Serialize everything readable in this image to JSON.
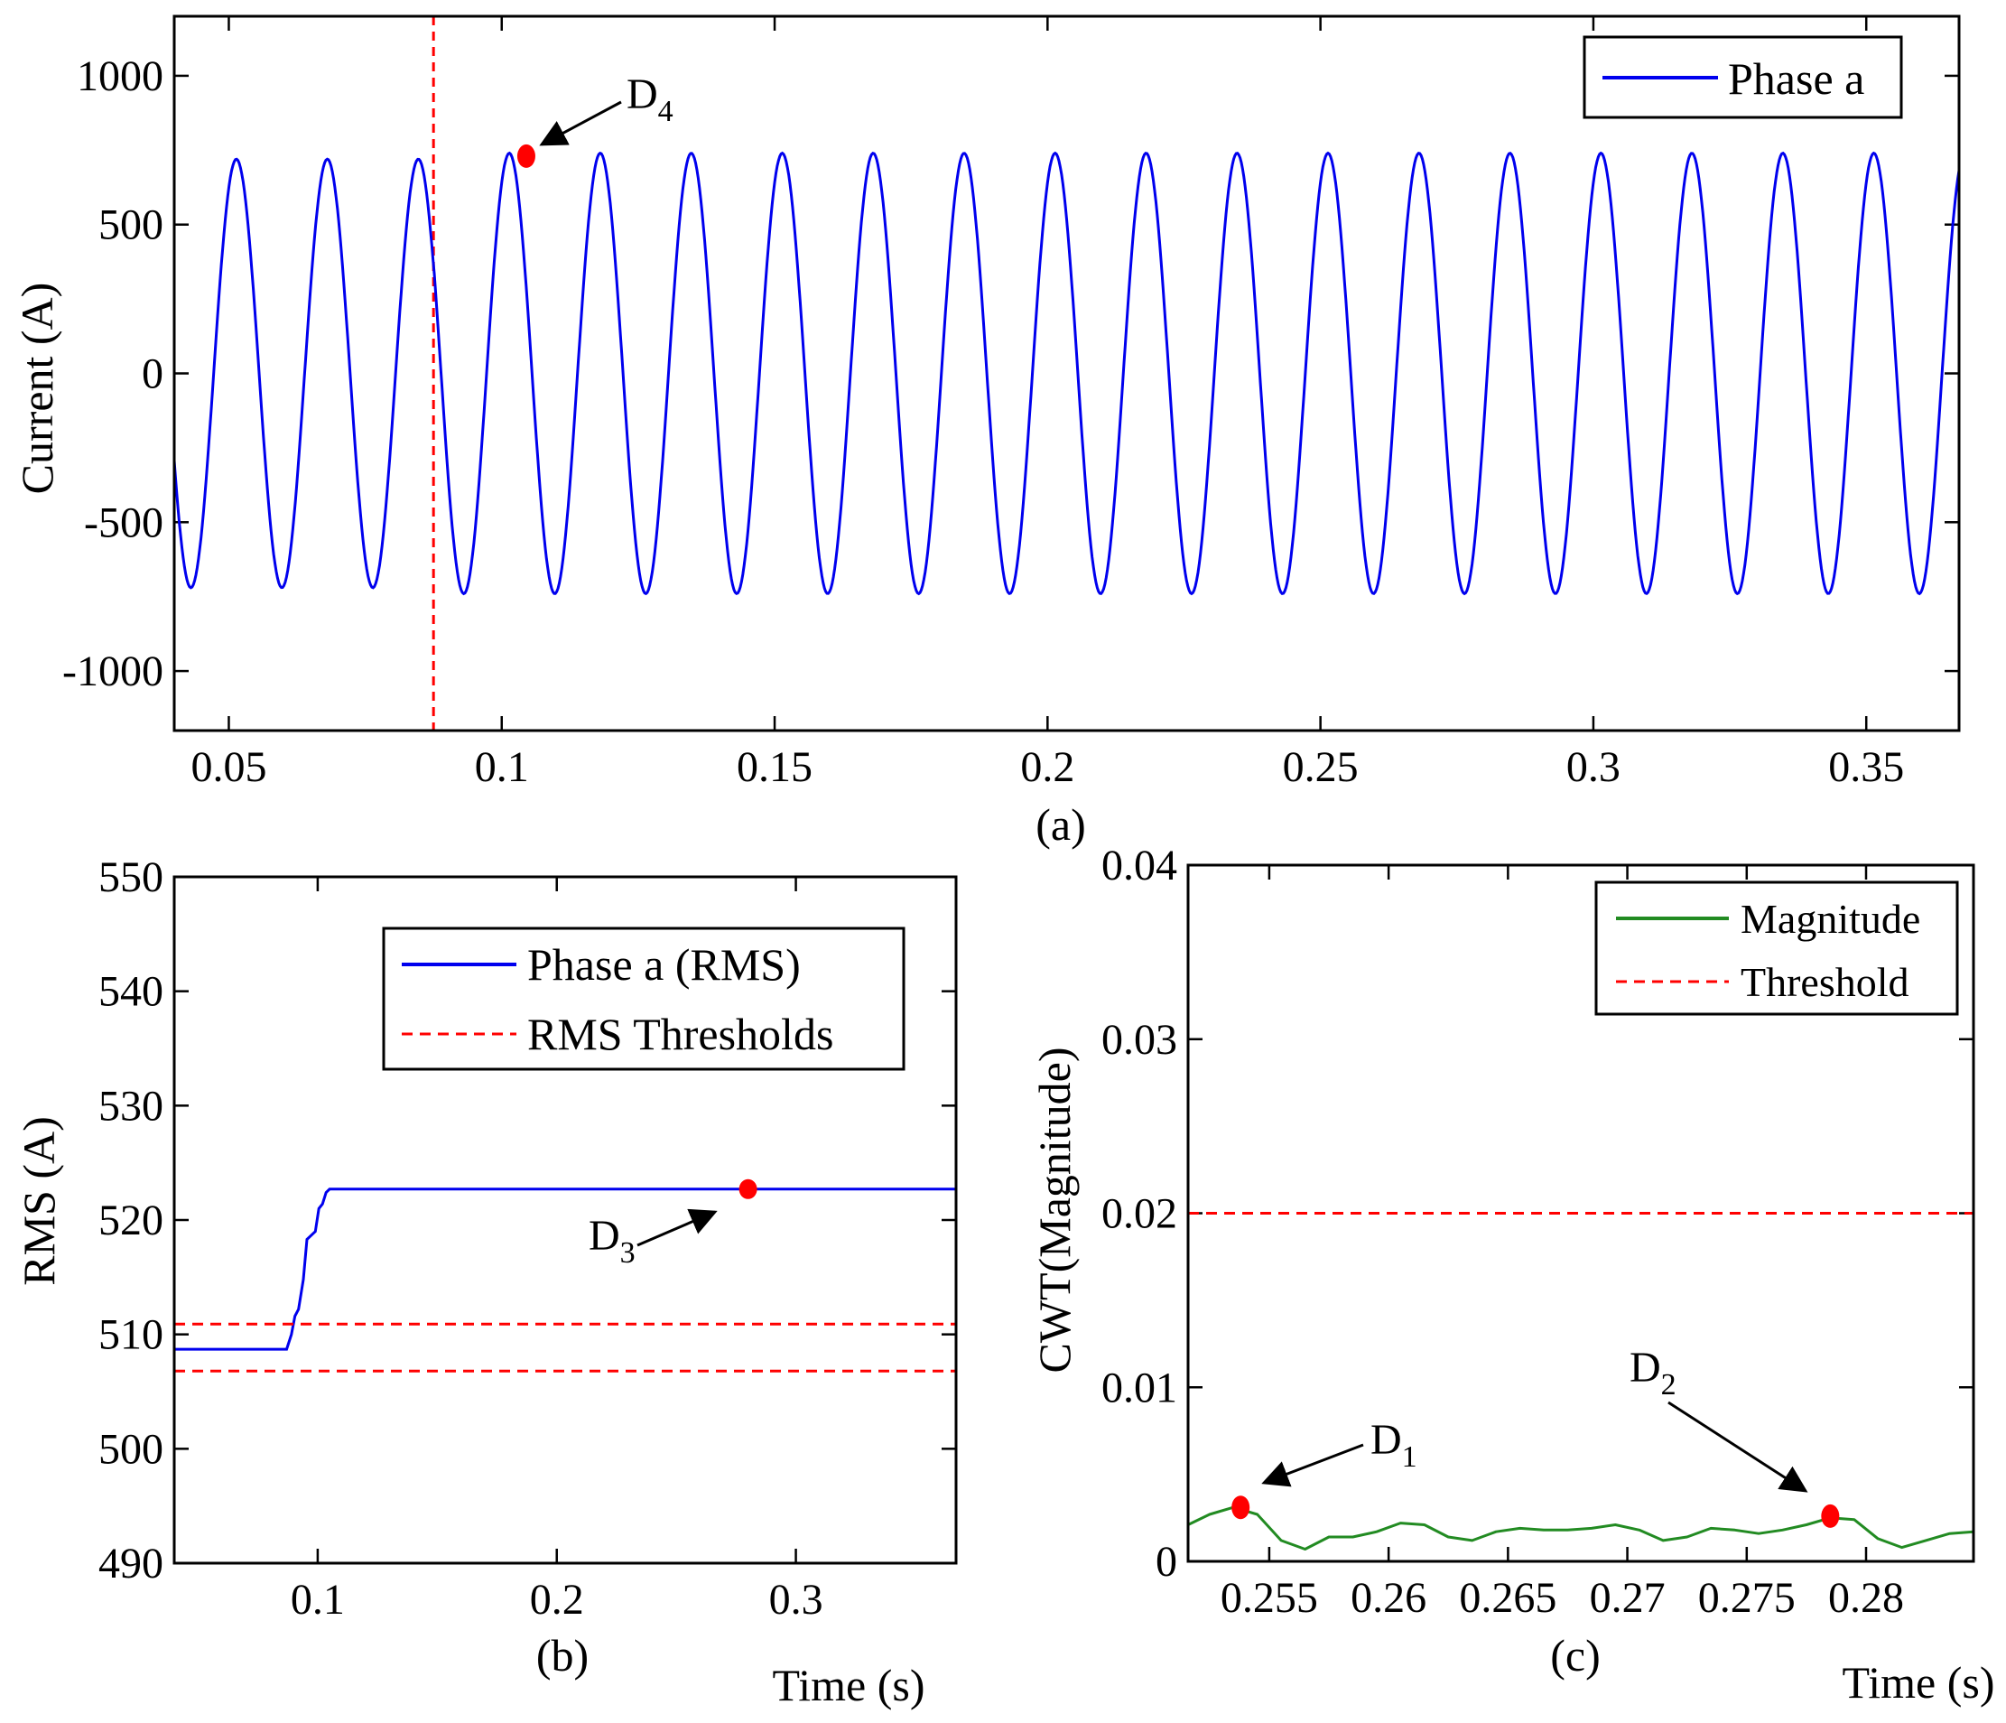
{
  "colors": {
    "phase": "#0000ee",
    "threshold": "#ff0000",
    "magnitude": "#228b22",
    "marker": "#ff0000",
    "axis": "#000000"
  },
  "chart_data": [
    {
      "id": "a",
      "type": "line",
      "panel_label": "(a)",
      "title": "",
      "xlabel": "",
      "ylabel": "Current (A)",
      "xlim": [
        0.04,
        0.367
      ],
      "ylim": [
        -1200,
        1200
      ],
      "xticks": [
        0.05,
        0.1,
        0.15,
        0.2,
        0.25,
        0.3,
        0.35
      ],
      "xtick_labels": [
        "0.05",
        "0.1",
        "0.15",
        "0.2",
        "0.25",
        "0.3",
        "0.35"
      ],
      "yticks": [
        -1000,
        -500,
        0,
        500,
        1000
      ],
      "ytick_labels": [
        "-1000",
        "-500",
        "0",
        "500",
        "1000"
      ],
      "series": [
        {
          "name": "Phase a",
          "kind": "sinusoid",
          "frequency_hz": 60,
          "amplitude_before": 720,
          "amplitude_after": 740,
          "change_time": 0.0875,
          "phase_deg": 60,
          "t_start": 0.04,
          "t_end": 0.367
        }
      ],
      "vlines": [
        {
          "x": 0.0875
        }
      ],
      "markers": [
        {
          "x": 0.1045,
          "y": 730,
          "label": "D",
          "sub": "4"
        }
      ],
      "legend": {
        "entries": [
          "Phase a"
        ],
        "position": "top-right"
      }
    },
    {
      "id": "b",
      "type": "line",
      "panel_label": "(b)",
      "title": "",
      "xlabel": "Time (s)",
      "ylabel": "RMS (A)",
      "xlim": [
        0.04,
        0.367
      ],
      "ylim": [
        490,
        550
      ],
      "xticks": [
        0.1,
        0.2,
        0.3
      ],
      "xtick_labels": [
        "0.1",
        "0.2",
        "0.3"
      ],
      "yticks": [
        490,
        500,
        510,
        520,
        530,
        540,
        550
      ],
      "ytick_labels": [
        "490",
        "500",
        "510",
        "520",
        "530",
        "540",
        "550"
      ],
      "series": [
        {
          "name": "Phase a (RMS)",
          "x": [
            0.04,
            0.087,
            0.089,
            0.0905,
            0.092,
            0.094,
            0.0955,
            0.097,
            0.099,
            0.1005,
            0.102,
            0.1035,
            0.105,
            0.367
          ],
          "y": [
            508.7,
            508.7,
            510.0,
            511.6,
            512.2,
            514.8,
            518.3,
            518.6,
            519.0,
            521.0,
            521.4,
            522.4,
            522.7,
            522.7
          ]
        },
        {
          "name": "RMS Thresholds",
          "x": [
            0.04,
            0.367
          ],
          "y": [
            510.9,
            510.9
          ]
        },
        {
          "name": "RMS Thresholds",
          "x": [
            0.04,
            0.367
          ],
          "y": [
            506.8,
            506.8
          ]
        }
      ],
      "markers": [
        {
          "x": 0.28,
          "y": 522.7,
          "label": "D",
          "sub": "3"
        }
      ],
      "legend": {
        "entries": [
          "Phase a (RMS)",
          "RMS Thresholds"
        ],
        "position": "top-right"
      }
    },
    {
      "id": "c",
      "type": "line",
      "panel_label": "(c)",
      "title": "",
      "xlabel": "Time (s)",
      "ylabel": "CWT(Magnitude)",
      "xlim": [
        0.2516,
        0.2845
      ],
      "ylim": [
        0,
        0.04
      ],
      "xticks": [
        0.255,
        0.26,
        0.265,
        0.27,
        0.275,
        0.28
      ],
      "xtick_labels": [
        "0.255",
        "0.26",
        "0.265",
        "0.27",
        "0.275",
        "0.28"
      ],
      "yticks": [
        0,
        0.01,
        0.02,
        0.03,
        0.04
      ],
      "ytick_labels": [
        "0",
        "0.01",
        "0.02",
        "0.03",
        "0.04"
      ],
      "series": [
        {
          "name": "Magnitude",
          "x": [
            0.2516,
            0.2525,
            0.2535,
            0.2545,
            0.2555,
            0.2565,
            0.2575,
            0.2585,
            0.2595,
            0.2605,
            0.2615,
            0.2625,
            0.2635,
            0.2645,
            0.2655,
            0.2665,
            0.2675,
            0.2685,
            0.2695,
            0.2705,
            0.2715,
            0.2725,
            0.2735,
            0.2745,
            0.2755,
            0.2765,
            0.2775,
            0.2785,
            0.2795,
            0.2805,
            0.2815,
            0.2825,
            0.2835,
            0.2845
          ],
          "y": [
            0.0021,
            0.0027,
            0.0031,
            0.0027,
            0.0012,
            0.0007,
            0.0014,
            0.0014,
            0.0017,
            0.0022,
            0.0021,
            0.0014,
            0.0012,
            0.0017,
            0.0019,
            0.0018,
            0.0018,
            0.0019,
            0.0021,
            0.0018,
            0.0012,
            0.0014,
            0.0019,
            0.0018,
            0.0016,
            0.0018,
            0.0021,
            0.0025,
            0.0024,
            0.0013,
            0.0008,
            0.0012,
            0.0016,
            0.0017
          ]
        },
        {
          "name": "Threshold",
          "x": [
            0.2516,
            0.2845
          ],
          "y": [
            0.02,
            0.02
          ]
        }
      ],
      "markers": [
        {
          "x": 0.2538,
          "y": 0.0031,
          "label": "D",
          "sub": "1"
        },
        {
          "x": 0.2785,
          "y": 0.0026,
          "label": "D",
          "sub": "2"
        }
      ],
      "legend": {
        "entries": [
          "Magnitude",
          "Threshold"
        ],
        "position": "top-right"
      }
    }
  ]
}
